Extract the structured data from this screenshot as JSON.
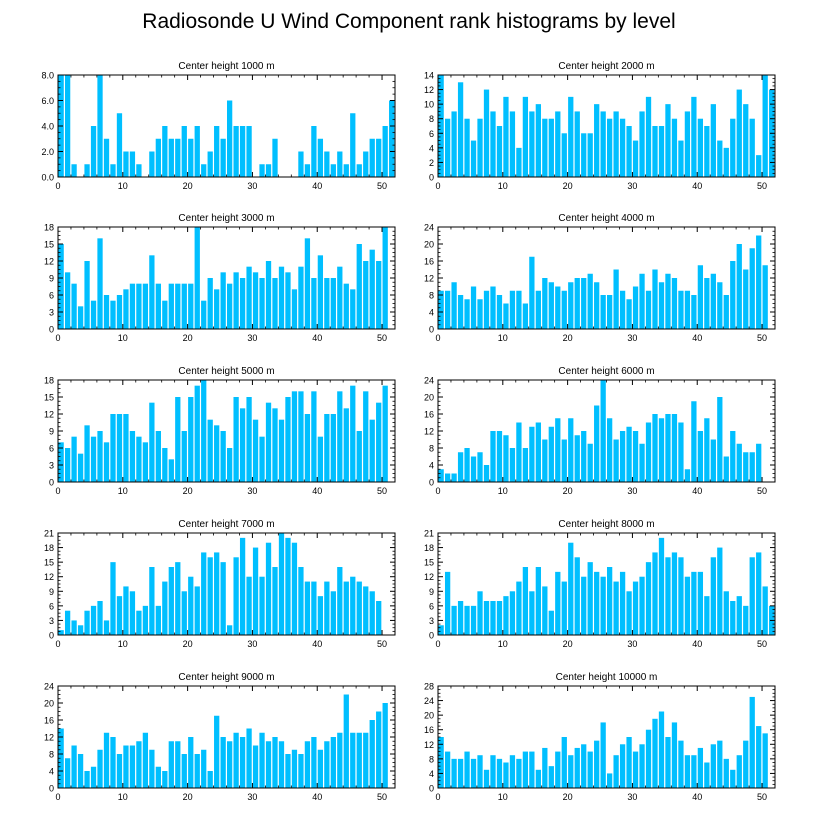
{
  "title": "Radiosonde U Wind Component rank histograms by level",
  "bar_color": "#00bfff",
  "chart_data": [
    {
      "type": "bar",
      "title": "Center height 1000 m",
      "ylim": [
        0,
        8
      ],
      "yticks": [
        "0.0",
        "2.0",
        "4.0",
        "6.0",
        "8.0"
      ],
      "xticks": [
        0,
        10,
        20,
        30,
        40,
        50
      ],
      "values": [
        8,
        8,
        1,
        0,
        1,
        4,
        8,
        3,
        1,
        5,
        2,
        2,
        1,
        0,
        2,
        3,
        4,
        3,
        3,
        4,
        3,
        4,
        1,
        2,
        4,
        3,
        6,
        4,
        4,
        4,
        0,
        1,
        1,
        3,
        0,
        0,
        0,
        2,
        1,
        4,
        3,
        2,
        1,
        2,
        1,
        5,
        1,
        2,
        3,
        3,
        4,
        6
      ]
    },
    {
      "type": "bar",
      "title": "Center height 2000 m",
      "ylim": [
        0,
        14
      ],
      "yticks": [
        "0",
        "2",
        "4",
        "6",
        "8",
        "10",
        "12",
        "14"
      ],
      "xticks": [
        0,
        10,
        20,
        30,
        40,
        50
      ],
      "values": [
        14,
        8,
        9,
        13,
        8,
        5,
        8,
        12,
        9,
        7,
        11,
        9,
        4,
        11,
        9,
        10,
        8,
        8,
        9,
        6,
        11,
        9,
        6,
        6,
        10,
        9,
        8,
        9,
        8,
        7,
        5,
        9,
        11,
        7,
        7,
        10,
        8,
        5,
        9,
        11,
        8,
        7,
        10,
        5,
        4,
        8,
        12,
        10,
        8,
        3,
        14,
        12
      ]
    },
    {
      "type": "bar",
      "title": "Center height 3000 m",
      "ylim": [
        0,
        18
      ],
      "yticks": [
        "0",
        "3",
        "6",
        "9",
        "12",
        "15",
        "18"
      ],
      "xticks": [
        0,
        10,
        20,
        30,
        40,
        50
      ],
      "values": [
        15,
        10,
        8,
        4,
        12,
        5,
        16,
        6,
        5,
        6,
        7,
        8,
        8,
        8,
        13,
        8,
        5,
        8,
        8,
        8,
        8,
        18,
        5,
        9,
        7,
        10,
        8,
        10,
        9,
        11,
        10,
        9,
        12,
        9,
        11,
        10,
        7,
        11,
        16,
        9,
        13,
        9,
        9,
        11,
        8,
        7,
        15,
        12,
        14,
        12,
        18
      ]
    },
    {
      "type": "bar",
      "title": "Center height 4000 m",
      "ylim": [
        0,
        24
      ],
      "yticks": [
        "0",
        "4",
        "8",
        "12",
        "16",
        "20",
        "24"
      ],
      "xticks": [
        0,
        10,
        20,
        30,
        40,
        50
      ],
      "values": [
        9,
        9,
        11,
        8,
        7,
        10,
        7,
        9,
        10,
        8,
        6,
        9,
        9,
        6,
        17,
        9,
        12,
        11,
        10,
        9,
        11,
        12,
        12,
        13,
        11,
        8,
        8,
        14,
        9,
        7,
        10,
        13,
        9,
        14,
        11,
        13,
        12,
        9,
        9,
        8,
        15,
        12,
        13,
        11,
        8,
        16,
        20,
        14,
        19,
        22,
        15
      ]
    },
    {
      "type": "bar",
      "title": "Center height 5000 m",
      "ylim": [
        0,
        18
      ],
      "yticks": [
        "0",
        "3",
        "6",
        "9",
        "12",
        "15",
        "18"
      ],
      "xticks": [
        0,
        10,
        20,
        30,
        40,
        50
      ],
      "values": [
        7,
        6,
        8,
        5,
        10,
        8,
        9,
        7,
        12,
        12,
        12,
        9,
        8,
        7,
        14,
        9,
        6,
        4,
        15,
        9,
        15,
        17,
        18,
        11,
        10,
        9,
        6,
        15,
        13,
        15,
        11,
        8,
        14,
        13,
        11,
        15,
        16,
        16,
        12,
        16,
        8,
        12,
        12,
        16,
        13,
        17,
        9,
        16,
        11,
        14,
        17
      ]
    },
    {
      "type": "bar",
      "title": "Center height 6000 m",
      "ylim": [
        0,
        24
      ],
      "yticks": [
        "0",
        "4",
        "8",
        "12",
        "16",
        "20",
        "24"
      ],
      "xticks": [
        0,
        10,
        20,
        30,
        40,
        50
      ],
      "values": [
        3,
        2,
        2,
        7,
        8,
        6,
        7,
        4,
        12,
        12,
        11,
        8,
        14,
        8,
        13,
        14,
        10,
        13,
        15,
        10,
        15,
        11,
        12,
        9,
        18,
        24,
        15,
        10,
        12,
        13,
        12,
        9,
        14,
        16,
        15,
        16,
        16,
        14,
        3,
        19,
        12,
        15,
        10,
        20,
        6,
        12,
        9,
        7,
        7,
        9
      ]
    },
    {
      "type": "bar",
      "title": "Center height 7000 m",
      "ylim": [
        0,
        21
      ],
      "yticks": [
        "0",
        "3",
        "6",
        "9",
        "12",
        "15",
        "18",
        "21"
      ],
      "xticks": [
        0,
        10,
        20,
        30,
        40,
        50
      ],
      "values": [
        1,
        5,
        3,
        2,
        5,
        6,
        7,
        3,
        15,
        8,
        10,
        9,
        5,
        6,
        14,
        6,
        11,
        14,
        15,
        9,
        12,
        10,
        17,
        16,
        17,
        15,
        2,
        16,
        20,
        12,
        18,
        12,
        19,
        14,
        21,
        20,
        19,
        14,
        11,
        11,
        8,
        11,
        9,
        14,
        11,
        12,
        11,
        10,
        9,
        7
      ]
    },
    {
      "type": "bar",
      "title": "Center height 8000 m",
      "ylim": [
        0,
        21
      ],
      "yticks": [
        "0",
        "3",
        "6",
        "9",
        "12",
        "15",
        "18",
        "21"
      ],
      "xticks": [
        0,
        10,
        20,
        30,
        40,
        50
      ],
      "values": [
        2,
        13,
        6,
        7,
        6,
        6,
        9,
        7,
        7,
        7,
        8,
        9,
        11,
        14,
        9,
        14,
        10,
        5,
        13,
        11,
        19,
        16,
        12,
        15,
        13,
        12,
        14,
        11,
        13,
        9,
        11,
        12,
        15,
        17,
        20,
        16,
        17,
        16,
        12,
        13,
        13,
        8,
        16,
        18,
        9,
        7,
        8,
        6,
        16,
        17,
        10,
        6
      ]
    },
    {
      "type": "bar",
      "title": "Center height 9000 m",
      "ylim": [
        0,
        24
      ],
      "yticks": [
        "0",
        "4",
        "8",
        "12",
        "16",
        "20",
        "24"
      ],
      "xticks": [
        0,
        10,
        20,
        30,
        40,
        50
      ],
      "values": [
        14,
        7,
        10,
        8,
        4,
        5,
        9,
        13,
        12,
        8,
        10,
        10,
        11,
        13,
        9,
        5,
        4,
        11,
        11,
        8,
        12,
        8,
        9,
        4,
        17,
        12,
        11,
        13,
        12,
        14,
        10,
        13,
        11,
        12,
        11,
        8,
        9,
        8,
        11,
        12,
        9,
        11,
        12,
        13,
        22,
        13,
        13,
        13,
        16,
        18,
        20
      ]
    },
    {
      "type": "bar",
      "title": "Center height 10000 m",
      "ylim": [
        0,
        28
      ],
      "yticks": [
        "0",
        "4",
        "8",
        "12",
        "16",
        "20",
        "24",
        "28"
      ],
      "xticks": [
        0,
        10,
        20,
        30,
        40,
        50
      ],
      "values": [
        14,
        10,
        8,
        8,
        10,
        8,
        9,
        5,
        9,
        8,
        7,
        9,
        8,
        10,
        10,
        5,
        11,
        6,
        10,
        14,
        9,
        11,
        12,
        10,
        13,
        18,
        4,
        9,
        12,
        14,
        10,
        12,
        16,
        19,
        21,
        14,
        18,
        13,
        9,
        9,
        11,
        7,
        12,
        13,
        8,
        5,
        9,
        13,
        25,
        17,
        15
      ]
    }
  ]
}
